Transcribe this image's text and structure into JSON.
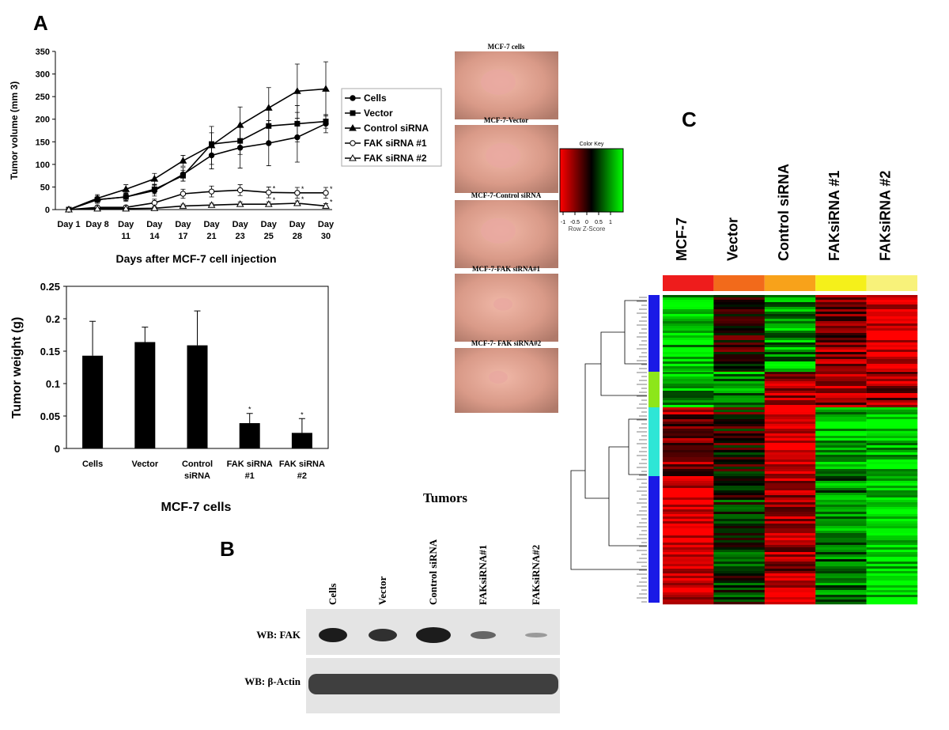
{
  "panels": {
    "a": "A",
    "b": "B",
    "c": "C"
  },
  "chart_data": [
    {
      "type": "line",
      "y_label": "Tumor volume (mm 3)",
      "x_label": "Days after MCF-7 cell injection",
      "categories": [
        "Day 1",
        "Day 8",
        "Day 11",
        "Day 14",
        "Day 17",
        "Day 21",
        "Day 23",
        "Day 25",
        "Day 28",
        "Day 30"
      ],
      "ylim": [
        0,
        350
      ],
      "yticks": [
        0,
        50,
        100,
        150,
        200,
        250,
        300,
        350
      ],
      "legend": "right",
      "series": [
        {
          "name": "Cells",
          "color": "#000000",
          "marker": "filled-circle",
          "values": [
            0,
            22,
            28,
            42,
            78,
            120,
            137,
            147,
            160,
            190
          ],
          "errors": [
            2,
            8,
            10,
            12,
            15,
            30,
            45,
            50,
            55,
            20
          ],
          "marks": [
            null,
            null,
            null,
            null,
            null,
            null,
            null,
            null,
            null,
            null
          ]
        },
        {
          "name": "Vector",
          "color": "#000000",
          "marker": "filled-square",
          "values": [
            0,
            22,
            28,
            45,
            75,
            145,
            152,
            185,
            190,
            195
          ],
          "errors": [
            2,
            8,
            8,
            10,
            12,
            25,
            30,
            40,
            40,
            15
          ],
          "marks": [
            null,
            null,
            null,
            null,
            null,
            null,
            null,
            null,
            null,
            null
          ]
        },
        {
          "name": "Control siRNA",
          "color": "#000000",
          "marker": "filled-triangle",
          "values": [
            0,
            25,
            45,
            68,
            108,
            142,
            187,
            225,
            262,
            267
          ],
          "errors": [
            2,
            8,
            10,
            12,
            12,
            42,
            40,
            45,
            60,
            60
          ],
          "marks": [
            null,
            null,
            null,
            null,
            null,
            null,
            null,
            null,
            null,
            null
          ]
        },
        {
          "name": "FAK siRNA #1",
          "color": "#000000",
          "marker": "open-circle",
          "values": [
            0,
            5,
            5,
            15,
            35,
            40,
            43,
            38,
            37,
            37
          ],
          "errors": [
            1,
            3,
            4,
            8,
            10,
            12,
            12,
            12,
            12,
            12
          ],
          "marks": [
            null,
            null,
            null,
            null,
            null,
            null,
            null,
            "*",
            "*",
            "*"
          ]
        },
        {
          "name": "FAK siRNA #2",
          "color": "#000000",
          "marker": "open-triangle",
          "values": [
            0,
            2,
            2,
            3,
            8,
            10,
            12,
            12,
            14,
            8
          ],
          "errors": [
            1,
            1,
            2,
            2,
            4,
            4,
            5,
            5,
            5,
            5
          ],
          "marks": [
            null,
            null,
            null,
            null,
            null,
            null,
            null,
            "*",
            "*",
            "*"
          ]
        }
      ]
    },
    {
      "type": "bar",
      "y_label": "Tumor weight (g)",
      "x_label": "MCF-7 cells",
      "color": "#000000",
      "categories": [
        "Cells",
        "Vector",
        "Control siRNA",
        "FAK siRNA #1",
        "FAK siRNA #2"
      ],
      "values": [
        0.143,
        0.164,
        0.159,
        0.039,
        0.024
      ],
      "errors": [
        0.053,
        0.023,
        0.053,
        0.015,
        0.022
      ],
      "marks": [
        null,
        null,
        null,
        "*",
        "*"
      ],
      "ylim": [
        0,
        0.25
      ],
      "yticks": [
        0,
        0.05,
        0.1,
        0.15,
        0.2,
        0.25
      ]
    }
  ],
  "photos": [
    "MCF-7 cells",
    "MCF-7-Vector",
    "MCF-7-Control siRNA",
    "MCF-7-FAK siRNA#1",
    "MCF-7- FAK siRNA#2"
  ],
  "color_key": {
    "title": "Color Key",
    "ticks": [
      -1,
      -0.5,
      0,
      0.5,
      1
    ],
    "label": "Row Z-Score"
  },
  "heatmap": {
    "columns": [
      "MCF-7",
      "Vector",
      "Control siRNA",
      "FAKsiRNA #1",
      "FAKsiRNA #2"
    ]
  },
  "blot": {
    "title": "Tumors",
    "lanes": [
      "Cells",
      "Vector",
      "Control siRNA",
      "FAKsiRNA#1",
      "FAKsiRNA#2"
    ],
    "rows": [
      "WB: FAK",
      "WB: β-Actin"
    ]
  }
}
